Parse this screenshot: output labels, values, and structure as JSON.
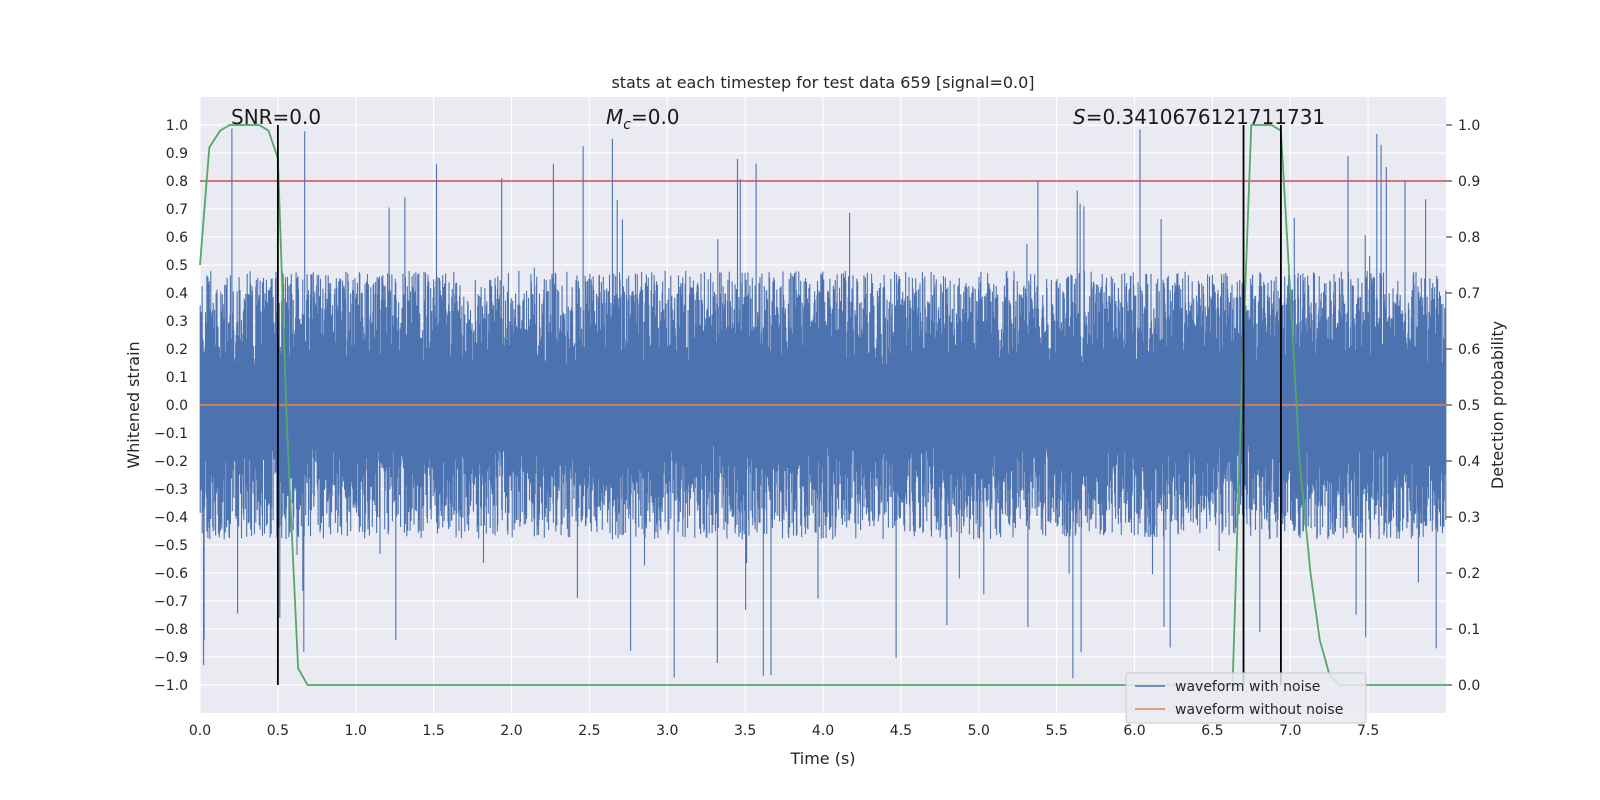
{
  "chart_data": {
    "type": "line",
    "title": "stats at each timestep for test data 659 [signal=0.0]",
    "xlabel": "Time (s)",
    "ylabel": "Whitened strain",
    "y2label": "Detection probability",
    "xlim": [
      0.0,
      8.0
    ],
    "ylim": [
      -1.1,
      1.1
    ],
    "y2lim": [
      -0.05,
      1.05
    ],
    "xticks": [
      0.0,
      0.5,
      1.0,
      1.5,
      2.0,
      2.5,
      3.0,
      3.5,
      4.0,
      4.5,
      5.0,
      5.5,
      6.0,
      6.5,
      7.0,
      7.5
    ],
    "xtick_labels": [
      "0.0",
      "0.5",
      "1.0",
      "1.5",
      "2.0",
      "2.5",
      "3.0",
      "3.5",
      "4.0",
      "4.5",
      "5.0",
      "5.5",
      "6.0",
      "6.5",
      "7.0",
      "7.5"
    ],
    "yticks": [
      -1.0,
      -0.9,
      -0.8,
      -0.7,
      -0.6,
      -0.5,
      -0.4,
      -0.3,
      -0.2,
      -0.1,
      0.0,
      0.1,
      0.2,
      0.3,
      0.4,
      0.5,
      0.6,
      0.7,
      0.8,
      0.9,
      1.0
    ],
    "ytick_labels": [
      "−1.0",
      "−0.9",
      "−0.8",
      "−0.7",
      "−0.6",
      "−0.5",
      "−0.4",
      "−0.3",
      "−0.2",
      "−0.1",
      "0.0",
      "0.1",
      "0.2",
      "0.3",
      "0.4",
      "0.5",
      "0.6",
      "0.7",
      "0.8",
      "0.9",
      "1.0"
    ],
    "y2ticks": [
      0.0,
      0.1,
      0.2,
      0.3,
      0.4,
      0.5,
      0.6,
      0.7,
      0.8,
      0.9,
      1.0
    ],
    "y2tick_labels": [
      "0.0",
      "0.1",
      "0.2",
      "0.3",
      "0.4",
      "0.5",
      "0.6",
      "0.7",
      "0.8",
      "0.9",
      "1.0"
    ],
    "grid": true,
    "annotations": {
      "snr": "SNR=0.0",
      "mc_symbol": "M",
      "mc_sub": "c",
      "mc_value": "=0.0",
      "s_symbol": "S",
      "s_value": "=0.3410676121711731"
    },
    "threshold_line": {
      "y2": 0.9,
      "color": "#c44e52"
    },
    "vertical_markers_s": [
      0.5,
      6.7,
      6.94
    ],
    "noise_band": {
      "name": "waveform with noise",
      "color": "#4c72b0",
      "typical_amplitude": 0.4,
      "max_positive": 0.99,
      "max_negative": -0.98,
      "note": "dense whitened noise samples spanning the full time range"
    },
    "series": [
      {
        "name": "waveform without noise",
        "color": "#dd8452",
        "axis": "left",
        "x": [
          0.0,
          8.0
        ],
        "y": [
          0.0,
          0.0
        ]
      },
      {
        "name": "detection probability",
        "color": "#55a868",
        "axis": "right",
        "x": [
          0.0,
          0.06,
          0.13,
          0.19,
          0.25,
          0.31,
          0.38,
          0.44,
          0.5,
          0.56,
          0.63,
          0.69,
          0.75,
          1.0,
          2.0,
          3.0,
          4.0,
          5.0,
          6.0,
          6.5,
          6.56,
          6.63,
          6.69,
          6.75,
          6.81,
          6.88,
          6.94,
          7.0,
          7.06,
          7.13,
          7.19,
          7.25,
          7.31,
          7.5,
          8.0
        ],
        "y": [
          0.75,
          0.96,
          0.99,
          1.0,
          1.0,
          1.0,
          1.0,
          0.99,
          0.94,
          0.45,
          0.03,
          0.0,
          0.0,
          0.0,
          0.0,
          0.0,
          0.0,
          0.0,
          0.0,
          0.0,
          0.0,
          0.0,
          0.55,
          1.0,
          1.0,
          1.0,
          0.99,
          0.7,
          0.4,
          0.2,
          0.08,
          0.02,
          0.0,
          0.0,
          0.0
        ]
      }
    ],
    "legend": {
      "placement": "lower-right",
      "entries": [
        {
          "label": "waveform with noise",
          "color": "#4c72b0"
        },
        {
          "label": "waveform without noise",
          "color": "#dd8452"
        }
      ]
    }
  }
}
